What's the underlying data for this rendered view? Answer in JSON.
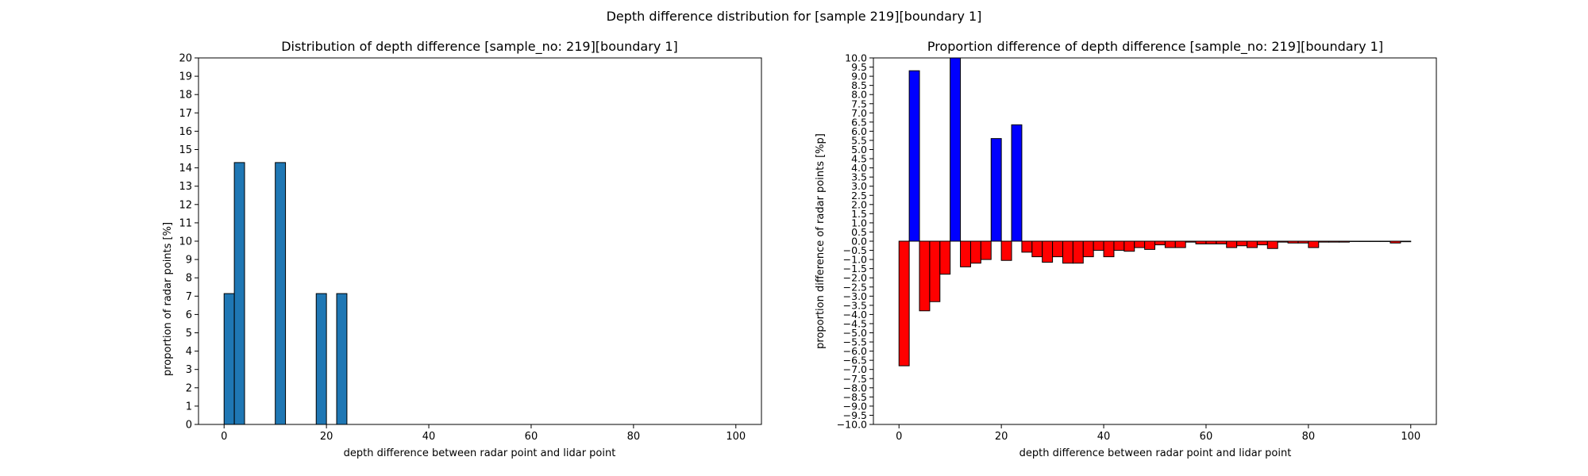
{
  "figure": {
    "suptitle": "Depth difference distribution for [sample 219][boundary 1]"
  },
  "chart_data": [
    {
      "type": "bar",
      "title": "Distribution of depth difference [sample_no: 219][boundary 1]",
      "xlabel": "depth difference between radar point and lidar point",
      "ylabel": "proportion of radar points [%]",
      "xlim": [
        -5,
        105
      ],
      "ylim": [
        0,
        20
      ],
      "bin_width": 2,
      "bar_color": "#1f77b4",
      "edge_color": "#000000",
      "grid": false,
      "xticks": [
        0,
        20,
        40,
        60,
        80,
        100
      ],
      "yticks": [
        0,
        1,
        2,
        3,
        4,
        5,
        6,
        7,
        8,
        9,
        10,
        11,
        12,
        13,
        14,
        15,
        16,
        17,
        18,
        19,
        20
      ],
      "bins": [
        {
          "x": 0,
          "value": 7.14
        },
        {
          "x": 2,
          "value": 14.29
        },
        {
          "x": 10,
          "value": 14.29
        },
        {
          "x": 18,
          "value": 7.14
        },
        {
          "x": 22,
          "value": 7.14
        }
      ]
    },
    {
      "type": "bar",
      "title": "Proportion difference of depth difference [sample_no: 219][boundary 1]",
      "xlabel": "depth difference between radar point and lidar point",
      "ylabel": "proportion difference of radar points [%p]",
      "xlim": [
        -5,
        105
      ],
      "ylim": [
        -10,
        10
      ],
      "bin_width": 2,
      "positive_color": "#0000ff",
      "negative_color": "#ff0000",
      "edge_color": "#000000",
      "grid": false,
      "xticks": [
        0,
        20,
        40,
        60,
        80,
        100
      ],
      "ytick_step": 0.5,
      "bins": [
        {
          "x": 0,
          "value": -6.8
        },
        {
          "x": 2,
          "value": 9.3
        },
        {
          "x": 4,
          "value": -3.8
        },
        {
          "x": 6,
          "value": -3.3
        },
        {
          "x": 8,
          "value": -1.8
        },
        {
          "x": 10,
          "value": 10.0
        },
        {
          "x": 12,
          "value": -1.4
        },
        {
          "x": 14,
          "value": -1.2
        },
        {
          "x": 16,
          "value": -1.0
        },
        {
          "x": 18,
          "value": 5.6
        },
        {
          "x": 20,
          "value": -1.05
        },
        {
          "x": 22,
          "value": 6.35
        },
        {
          "x": 24,
          "value": -0.6
        },
        {
          "x": 26,
          "value": -0.85
        },
        {
          "x": 28,
          "value": -1.15
        },
        {
          "x": 30,
          "value": -0.85
        },
        {
          "x": 32,
          "value": -1.2
        },
        {
          "x": 34,
          "value": -1.2
        },
        {
          "x": 36,
          "value": -0.85
        },
        {
          "x": 38,
          "value": -0.5
        },
        {
          "x": 40,
          "value": -0.85
        },
        {
          "x": 42,
          "value": -0.5
        },
        {
          "x": 44,
          "value": -0.55
        },
        {
          "x": 46,
          "value": -0.35
        },
        {
          "x": 48,
          "value": -0.45
        },
        {
          "x": 50,
          "value": -0.2
        },
        {
          "x": 52,
          "value": -0.35
        },
        {
          "x": 54,
          "value": -0.35
        },
        {
          "x": 56,
          "value": -0.05
        },
        {
          "x": 58,
          "value": -0.15
        },
        {
          "x": 60,
          "value": -0.15
        },
        {
          "x": 62,
          "value": -0.15
        },
        {
          "x": 64,
          "value": -0.35
        },
        {
          "x": 66,
          "value": -0.25
        },
        {
          "x": 68,
          "value": -0.35
        },
        {
          "x": 70,
          "value": -0.2
        },
        {
          "x": 72,
          "value": -0.4
        },
        {
          "x": 74,
          "value": -0.05
        },
        {
          "x": 76,
          "value": -0.1
        },
        {
          "x": 78,
          "value": -0.1
        },
        {
          "x": 80,
          "value": -0.35
        },
        {
          "x": 82,
          "value": -0.05
        },
        {
          "x": 84,
          "value": -0.05
        },
        {
          "x": 86,
          "value": -0.05
        },
        {
          "x": 88,
          "value": -0.02
        },
        {
          "x": 90,
          "value": -0.02
        },
        {
          "x": 92,
          "value": -0.02
        },
        {
          "x": 94,
          "value": -0.02
        },
        {
          "x": 96,
          "value": -0.1
        },
        {
          "x": 98,
          "value": -0.03
        }
      ]
    }
  ]
}
